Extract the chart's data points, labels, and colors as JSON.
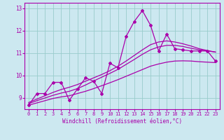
{
  "xlabel": "Windchill (Refroidissement éolien,°C)",
  "bg_color": "#cce8f0",
  "line_color": "#aa00aa",
  "grid_color": "#99cccc",
  "xlim": [
    -0.5,
    23.5
  ],
  "ylim": [
    8.5,
    13.25
  ],
  "yticks": [
    9,
    10,
    11,
    12,
    13
  ],
  "xticks": [
    0,
    1,
    2,
    3,
    4,
    5,
    6,
    7,
    8,
    9,
    10,
    11,
    12,
    13,
    14,
    15,
    16,
    17,
    18,
    19,
    20,
    21,
    22,
    23
  ],
  "series1_x": [
    0,
    1,
    2,
    3,
    4,
    5,
    6,
    7,
    8,
    9,
    10,
    11,
    12,
    13,
    14,
    15,
    16,
    17,
    18,
    19,
    20,
    21,
    22,
    23
  ],
  "series1_y": [
    8.68,
    9.2,
    9.2,
    9.7,
    9.7,
    8.9,
    9.4,
    9.9,
    9.75,
    9.2,
    10.55,
    10.35,
    11.75,
    12.42,
    12.9,
    12.25,
    11.1,
    11.85,
    11.2,
    11.15,
    11.1,
    11.1,
    11.1,
    10.65
  ],
  "line1_x": [
    0,
    1,
    2,
    3,
    4,
    5,
    6,
    7,
    8,
    9,
    10,
    11,
    12,
    13,
    14,
    15,
    16,
    17,
    18,
    19,
    20,
    21,
    22,
    23
  ],
  "line1_y": [
    8.68,
    8.78,
    8.88,
    8.98,
    9.05,
    9.1,
    9.2,
    9.3,
    9.42,
    9.55,
    9.68,
    9.82,
    9.97,
    10.12,
    10.27,
    10.42,
    10.52,
    10.6,
    10.65,
    10.66,
    10.65,
    10.62,
    10.6,
    10.58
  ],
  "line2_x": [
    0,
    1,
    2,
    3,
    4,
    5,
    6,
    7,
    8,
    9,
    10,
    11,
    12,
    13,
    14,
    15,
    16,
    17,
    18,
    19,
    20,
    21,
    22,
    23
  ],
  "line2_y": [
    8.75,
    8.88,
    9.0,
    9.12,
    9.22,
    9.3,
    9.42,
    9.58,
    9.76,
    9.93,
    10.1,
    10.28,
    10.5,
    10.72,
    10.95,
    11.15,
    11.28,
    11.35,
    11.35,
    11.3,
    11.22,
    11.15,
    11.1,
    11.05
  ],
  "line3_x": [
    0,
    1,
    2,
    3,
    4,
    5,
    6,
    7,
    8,
    9,
    10,
    11,
    12,
    13,
    14,
    15,
    16,
    17,
    18,
    19,
    20,
    21,
    22,
    23
  ],
  "line3_y": [
    8.8,
    8.95,
    9.1,
    9.25,
    9.38,
    9.48,
    9.6,
    9.75,
    9.9,
    10.05,
    10.22,
    10.42,
    10.65,
    10.9,
    11.15,
    11.38,
    11.5,
    11.55,
    11.5,
    11.42,
    11.32,
    11.2,
    11.12,
    11.05
  ]
}
